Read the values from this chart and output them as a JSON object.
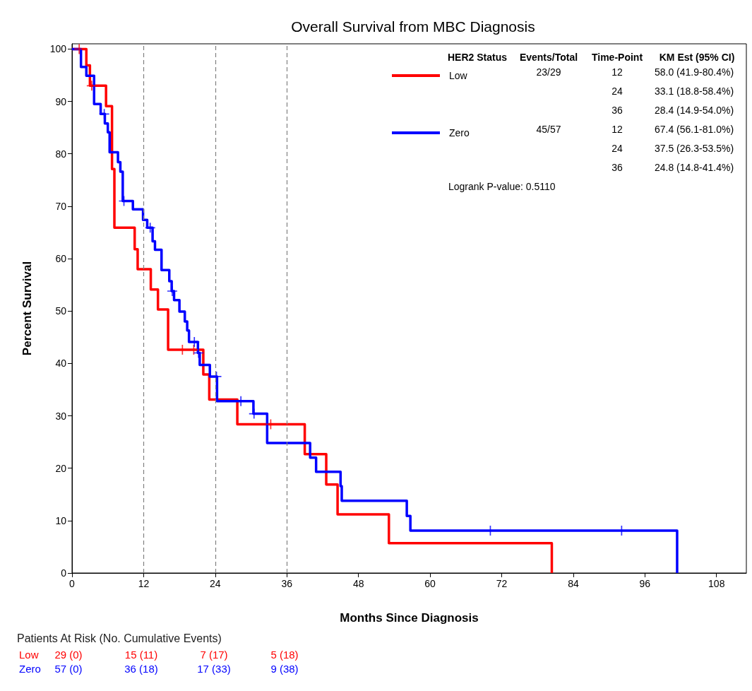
{
  "chart_data": {
    "type": "step",
    "title": "Overall Survival from MBC Diagnosis",
    "xlabel": "Months Since Diagnosis",
    "ylabel": "Percent Survival",
    "legend_title": "HER2 Status",
    "legend": "top right",
    "grid": false,
    "line_style": "solid",
    "xlim": [
      0,
      113
    ],
    "xticks": [
      0,
      12,
      24,
      36,
      48,
      60,
      72,
      84,
      96,
      108
    ],
    "ylim": [
      0,
      101
    ],
    "yticks": [
      0,
      10,
      20,
      30,
      40,
      50,
      60,
      70,
      80,
      90,
      100
    ],
    "series": [
      {
        "name": "Low",
        "color": "#ff0000",
        "marker": "none",
        "x": [
          0,
          2.4,
          3.0,
          5.7,
          6.7,
          7.1,
          10.5,
          11.0,
          13.2,
          14.4,
          16.1,
          22.0,
          23.0,
          27.7,
          39.0,
          42.6,
          44.5,
          53.1,
          80.4
        ],
        "values": [
          100,
          96.9,
          93.0,
          89.1,
          77.1,
          65.9,
          61.8,
          58.0,
          54.1,
          50.3,
          42.6,
          37.9,
          33.1,
          28.4,
          22.7,
          16.9,
          11.2,
          5.7,
          0
        ]
      },
      {
        "name": "Zero",
        "color": "#0000ff",
        "marker": "none",
        "x": [
          0,
          1.5,
          2.4,
          3.7,
          4.8,
          5.5,
          6.0,
          6.3,
          7.7,
          8.1,
          8.5,
          10.2,
          11.9,
          12.6,
          13.5,
          13.9,
          15.0,
          16.3,
          16.7,
          17.1,
          18.0,
          18.9,
          19.3,
          19.6,
          21.1,
          21.4,
          23.1,
          24.3,
          30.4,
          32.7,
          39.9,
          40.9,
          45.0,
          45.2,
          56.1,
          56.7,
          101.4
        ],
        "values": [
          100,
          96.6,
          94.9,
          89.5,
          87.6,
          85.8,
          84.1,
          80.3,
          78.4,
          76.6,
          71.0,
          69.4,
          67.4,
          65.9,
          63.3,
          61.7,
          57.8,
          55.7,
          53.8,
          52.1,
          49.9,
          48.0,
          46.3,
          44.1,
          42.0,
          39.7,
          37.5,
          32.8,
          30.4,
          24.8,
          22.0,
          19.3,
          16.6,
          13.8,
          10.9,
          8.1,
          0
        ]
      },
      {
        "type": "scatter",
        "color": "#ff0000",
        "marker": "cross",
        "x": [
          1.2,
          3.3,
          18.5,
          20.4,
          33.3
        ],
        "values": [
          100,
          93.0,
          42.6,
          42.6,
          28.4
        ]
      },
      {
        "type": "scatter",
        "color": "#0000ff",
        "marker": "cross",
        "x": [
          5.4,
          8.7,
          13.1,
          16.8,
          20.5,
          21.2,
          24.2,
          28.3,
          30.5,
          70.1,
          92.1
        ],
        "values": [
          87.6,
          71.0,
          65.9,
          53.8,
          44.1,
          42.0,
          37.5,
          32.8,
          30.4,
          8.1,
          8.1
        ]
      }
    ],
    "ref_lines": [
      {
        "axis": "x",
        "value": 12,
        "color": "#808080",
        "line_style": "dashed"
      },
      {
        "axis": "x",
        "value": 24,
        "color": "#808080",
        "line_style": "dashed"
      },
      {
        "axis": "x",
        "value": 36,
        "color": "#808080",
        "line_style": "dashed"
      }
    ],
    "annotations": [
      "Events/Total",
      "Time-Point",
      "KM Est (95% CI)",
      "23/29",
      "12",
      "58.0 (41.9-80.4%)",
      "24",
      "33.1 (18.8-58.4%)",
      "36",
      "28.4 (14.9-54.0%)",
      "45/57",
      "12",
      "67.4 (56.1-81.0%)",
      "24",
      "37.5 (26.3-53.5%)",
      "36",
      "24.8 (14.8-41.4%)",
      "Logrank P-value: 0.5110",
      "Patients At Risk (No. Cumulative Events)",
      "29 (0)",
      "15 (11)",
      "7 (17)",
      "5 (18)",
      "57 (0)",
      "36 (18)",
      "17 (33)",
      "9 (38)"
    ]
  }
}
